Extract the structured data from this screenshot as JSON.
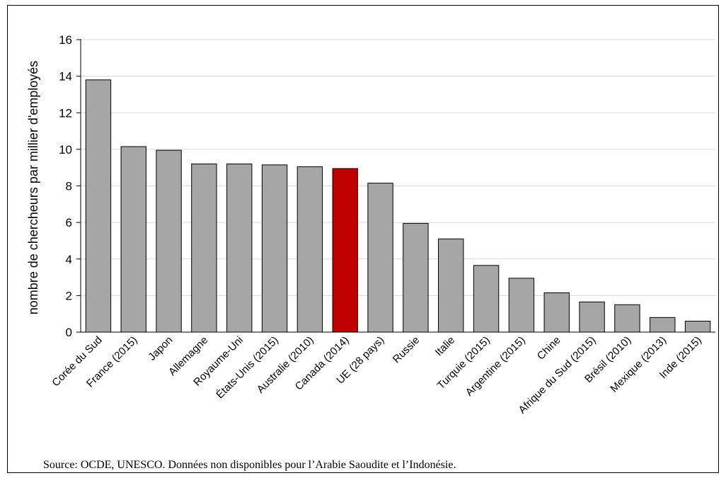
{
  "chart_data": {
    "type": "bar",
    "categories": [
      "Corée du Sud",
      "France (2015)",
      "Japon",
      "Allemagne",
      "Royaume-Uni",
      "États-Unis (2015)",
      "Australie (2010)",
      "Canada (2014)",
      "UE (28 pays)",
      "Russie",
      "Italie",
      "Turquie (2015)",
      "Argentine (2015)",
      "Chine",
      "Afrique du Sud (2015)",
      "Brésil (2010)",
      "Mexique (2013)",
      "Inde (2015)"
    ],
    "values": [
      13.8,
      10.15,
      9.95,
      9.2,
      9.2,
      9.15,
      9.05,
      8.95,
      8.15,
      5.95,
      5.1,
      3.65,
      2.95,
      2.15,
      1.65,
      1.5,
      0.8,
      0.6
    ],
    "highlight_index": 7,
    "colors": {
      "bar": "#a6a6a6",
      "highlight": "#c00000",
      "grid": "#d9d9d9",
      "outline": "#000000"
    },
    "ylabel": "nombre de chercheurs par millier d'employés",
    "xlabel": "",
    "ylim": [
      0,
      16
    ],
    "yticks": [
      "0",
      "2",
      "4",
      "6",
      "8",
      "10",
      "12",
      "14",
      "16"
    ],
    "grid": true
  },
  "source": "Source: OCDE, UNESCO. Données non disponibles pour l’Arabie Saoudite et l’Indonésie."
}
